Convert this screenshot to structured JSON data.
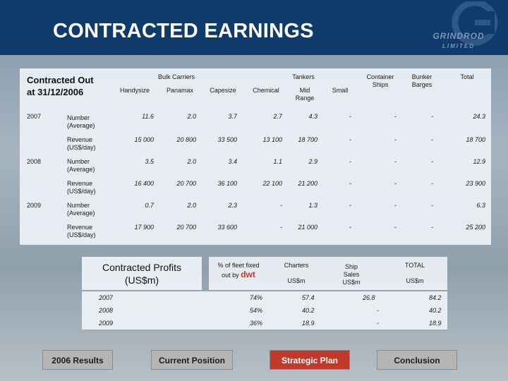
{
  "header": {
    "title": "CONTRACTED EARNINGS",
    "logo_text": "GRINDROD",
    "logo_sub": "LIMITED"
  },
  "table": {
    "contracted_out_line1": "Contracted Out",
    "contracted_out_line2": "at 31/12/2006",
    "group_bulk": "Bulk Carriers",
    "group_tankers": "Tankers",
    "col_handysize": "Handysize",
    "col_panamax": "Panamax",
    "col_capesize": "Capesize",
    "col_chemical": "Chemical",
    "col_midrange_1": "Mid",
    "col_midrange_2": "Range",
    "col_small": "Small",
    "col_container_1": "Container",
    "col_container_2": "Ships",
    "col_bunker_1": "Bunker",
    "col_bunker_2": "Barges",
    "col_total": "Total",
    "label_number_1": "Number",
    "label_number_2": "(Average)",
    "label_revenue_1": "Revenue",
    "label_revenue_2": "(US$/day)",
    "y2007": "2007",
    "y2008": "2008",
    "y2009": "2009",
    "r2007n": [
      "11.6",
      "2.0",
      "3.7",
      "2.7",
      "4.3",
      "-",
      "-",
      "-",
      "24.3"
    ],
    "r2007r": [
      "15 000",
      "20 800",
      "33 500",
      "13 100",
      "18 700",
      "-",
      "-",
      "-",
      "18 700"
    ],
    "r2008n": [
      "3.5",
      "2.0",
      "3.4",
      "1.1",
      "2.9",
      "-",
      "-",
      "-",
      "12.9"
    ],
    "r2008r": [
      "16 400",
      "20 700",
      "36 100",
      "22 100",
      "21 200",
      "-",
      "-",
      "-",
      "23 900"
    ],
    "r2009n": [
      "0.7",
      "2.0",
      "2.3",
      "-",
      "1.3",
      "-",
      "-",
      "-",
      "6.3"
    ],
    "r2009r": [
      "17 900",
      "20 700",
      "33 600",
      "-",
      "21 000",
      "-",
      "-",
      "-",
      "25 200"
    ]
  },
  "profits": {
    "title_1": "Contracted Profits",
    "title_2": "(US$m)",
    "col_fleet_1": "% of fleet fixed",
    "col_fleet_2": "out by",
    "col_fleet_dwt": "dwt",
    "col_charters": "Charters",
    "col_charters_unit": "US$m",
    "col_ship_1": "Ship",
    "col_ship_2": "Sales",
    "col_ship_3": "US$m",
    "col_total": "TOTAL",
    "col_total_unit": "US$m",
    "rows": [
      {
        "year": "2007",
        "pct": "74%",
        "charters": "57.4",
        "ship": "26.8",
        "total": "84.2"
      },
      {
        "year": "2008",
        "pct": "54%",
        "charters": "40.2",
        "ship": "-",
        "total": "40.2"
      },
      {
        "year": "2009",
        "pct": "36%",
        "charters": "18.9",
        "ship": "-",
        "total": "18.9"
      }
    ]
  },
  "nav": {
    "results": "2006 Results",
    "current": "Current Position",
    "strategic": "Strategic Plan",
    "conclusion": "Conclusion"
  },
  "colors": {
    "header_bg": "#0e3a6c",
    "active_nav": "#c0392b",
    "dwt_text": "#c0392b"
  }
}
